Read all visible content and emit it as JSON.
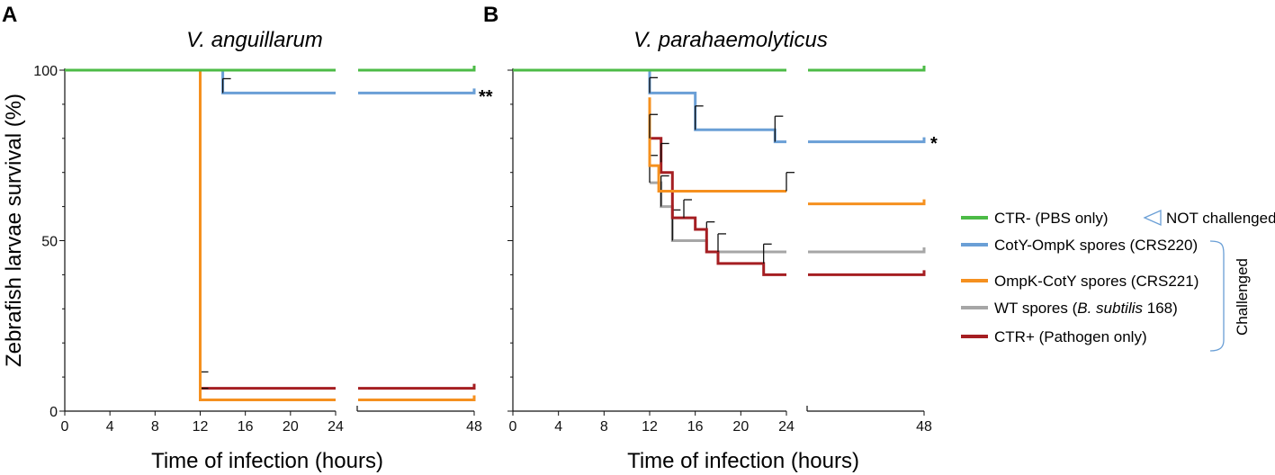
{
  "chart_data": [
    {
      "panel": "A",
      "type": "line",
      "step": true,
      "title": "V. anguillarum",
      "xlabel": "Time of infection (hours)",
      "ylabel": "Zebrafish larvae survival (%)",
      "xticks": [
        0,
        4,
        8,
        12,
        16,
        20,
        24,
        48
      ],
      "yticks": [
        0,
        50,
        100
      ],
      "ylim": [
        0,
        100
      ],
      "significance": [
        {
          "series": "CotY-OmpK spores (CRS220)",
          "label": "**"
        }
      ],
      "series": [
        {
          "name": "CTR- (PBS only)",
          "color": "#4cbb46",
          "points": [
            [
              0,
              100
            ],
            [
              24,
              100
            ]
          ],
          "tail": 100,
          "errors": []
        },
        {
          "name": "CotY-OmpK spores (CRS220)",
          "color": "#6a9fd6",
          "points": [
            [
              0,
              100
            ],
            [
              14,
              100
            ],
            [
              14,
              93.3
            ],
            [
              24,
              93.3
            ]
          ],
          "tail": 93.3,
          "errors": [
            [
              14,
              93.3,
              97.5
            ]
          ]
        },
        {
          "name": "OmpK-CotY spores (CRS221)",
          "color": "#f5901f",
          "points": [
            [
              0,
              100
            ],
            [
              12,
              100
            ],
            [
              12,
              3.3
            ],
            [
              24,
              3.3
            ]
          ],
          "tail": 3.3,
          "errors": []
        },
        {
          "name": "WT spores (B. subtilis 168)",
          "color": "#a6a6a6",
          "points": [],
          "tail": null,
          "errors": []
        },
        {
          "name": "CTR+ (Pathogen only)",
          "color": "#a51e22",
          "points": [
            [
              12,
              6.7
            ],
            [
              24,
              6.7
            ]
          ],
          "tail": 6.7,
          "errors": [
            [
              12,
              6.7,
              11.5
            ],
            [
              12,
              3.3,
              6.7
            ]
          ]
        }
      ]
    },
    {
      "panel": "B",
      "type": "line",
      "step": true,
      "title": "V. parahaemolyticus",
      "xlabel": "Time of infection (hours)",
      "ylabel": "",
      "xticks": [
        0,
        4,
        8,
        12,
        16,
        20,
        24,
        48
      ],
      "yticks": [
        0,
        50,
        100
      ],
      "ylim": [
        0,
        100
      ],
      "significance": [
        {
          "series": "CotY-OmpK spores (CRS220)",
          "label": "*"
        }
      ],
      "series": [
        {
          "name": "CTR- (PBS only)",
          "color": "#4cbb46",
          "points": [
            [
              0,
              100
            ],
            [
              24,
              100
            ]
          ],
          "tail": 100,
          "errors": []
        },
        {
          "name": "CotY-OmpK spores (CRS220)",
          "color": "#6a9fd6",
          "points": [
            [
              0,
              100
            ],
            [
              12,
              100
            ],
            [
              12,
              93.3
            ],
            [
              16,
              93.3
            ],
            [
              16,
              82.5
            ],
            [
              23,
              82.5
            ],
            [
              23,
              79
            ],
            [
              24,
              79
            ]
          ],
          "tail": 79,
          "errors": [
            [
              12,
              93.3,
              97.8
            ],
            [
              16,
              82.5,
              89.5
            ],
            [
              23,
              79,
              86.5
            ]
          ]
        },
        {
          "name": "OmpK-CotY spores (CRS221)",
          "color": "#f5901f",
          "points": [
            [
              12,
              92
            ],
            [
              12,
              72
            ],
            [
              12.8,
              72
            ],
            [
              12.8,
              64.5
            ],
            [
              24,
              64.5
            ]
          ],
          "tail": 60.8,
          "errors": [
            [
              12,
              80,
              87
            ],
            [
              24,
              64.5,
              70
            ]
          ]
        },
        {
          "name": "WT spores (B. subtilis 168)",
          "color": "#a6a6a6",
          "points": [
            [
              12,
              67
            ],
            [
              13,
              67
            ],
            [
              13,
              60
            ],
            [
              14,
              60
            ],
            [
              14,
              50
            ],
            [
              17,
              50
            ],
            [
              17,
              46.7
            ],
            [
              24,
              46.7
            ]
          ],
          "tail": 46.7,
          "errors": [
            [
              12,
              67,
              75
            ],
            [
              13,
              60,
              69
            ],
            [
              14,
              50,
              59
            ],
            [
              17,
              46.7,
              55.5
            ]
          ]
        },
        {
          "name": "CTR+ (Pathogen only)",
          "color": "#a51e22",
          "points": [
            [
              12,
              80
            ],
            [
              13,
              80
            ],
            [
              13,
              70
            ],
            [
              14,
              70
            ],
            [
              14,
              56.7
            ],
            [
              16,
              56.7
            ],
            [
              16,
              53.3
            ],
            [
              17,
              53.3
            ],
            [
              17,
              46.7
            ],
            [
              18,
              46.7
            ],
            [
              18,
              43.3
            ],
            [
              22,
              43.3
            ],
            [
              22,
              40
            ],
            [
              24,
              40
            ]
          ],
          "tail": 40,
          "errors": [
            [
              13,
              73,
              78.5
            ],
            [
              15,
              56.7,
              62
            ],
            [
              18,
              46.7,
              52
            ],
            [
              22,
              43.3,
              49
            ]
          ]
        }
      ]
    }
  ],
  "legend": {
    "entries": [
      {
        "label": "CTR- (PBS only)",
        "color": "#4cbb46"
      },
      {
        "label": "CotY-OmpK spores (CRS220)",
        "color": "#6a9fd6"
      },
      {
        "label": "OmpK-CotY spores (CRS221)",
        "color": "#f5901f"
      },
      {
        "label": "WT spores (",
        "italic": "B. subtilis",
        "suffix": " 168)",
        "color": "#a6a6a6"
      },
      {
        "label": "CTR+ (Pathogen only)",
        "color": "#a51e22"
      }
    ],
    "not_challenged_label": "NOT challenged",
    "challenged_label": "Challenged",
    "bracket_color": "#6a9fd6"
  },
  "panels": {
    "a": "A",
    "b": "B"
  }
}
